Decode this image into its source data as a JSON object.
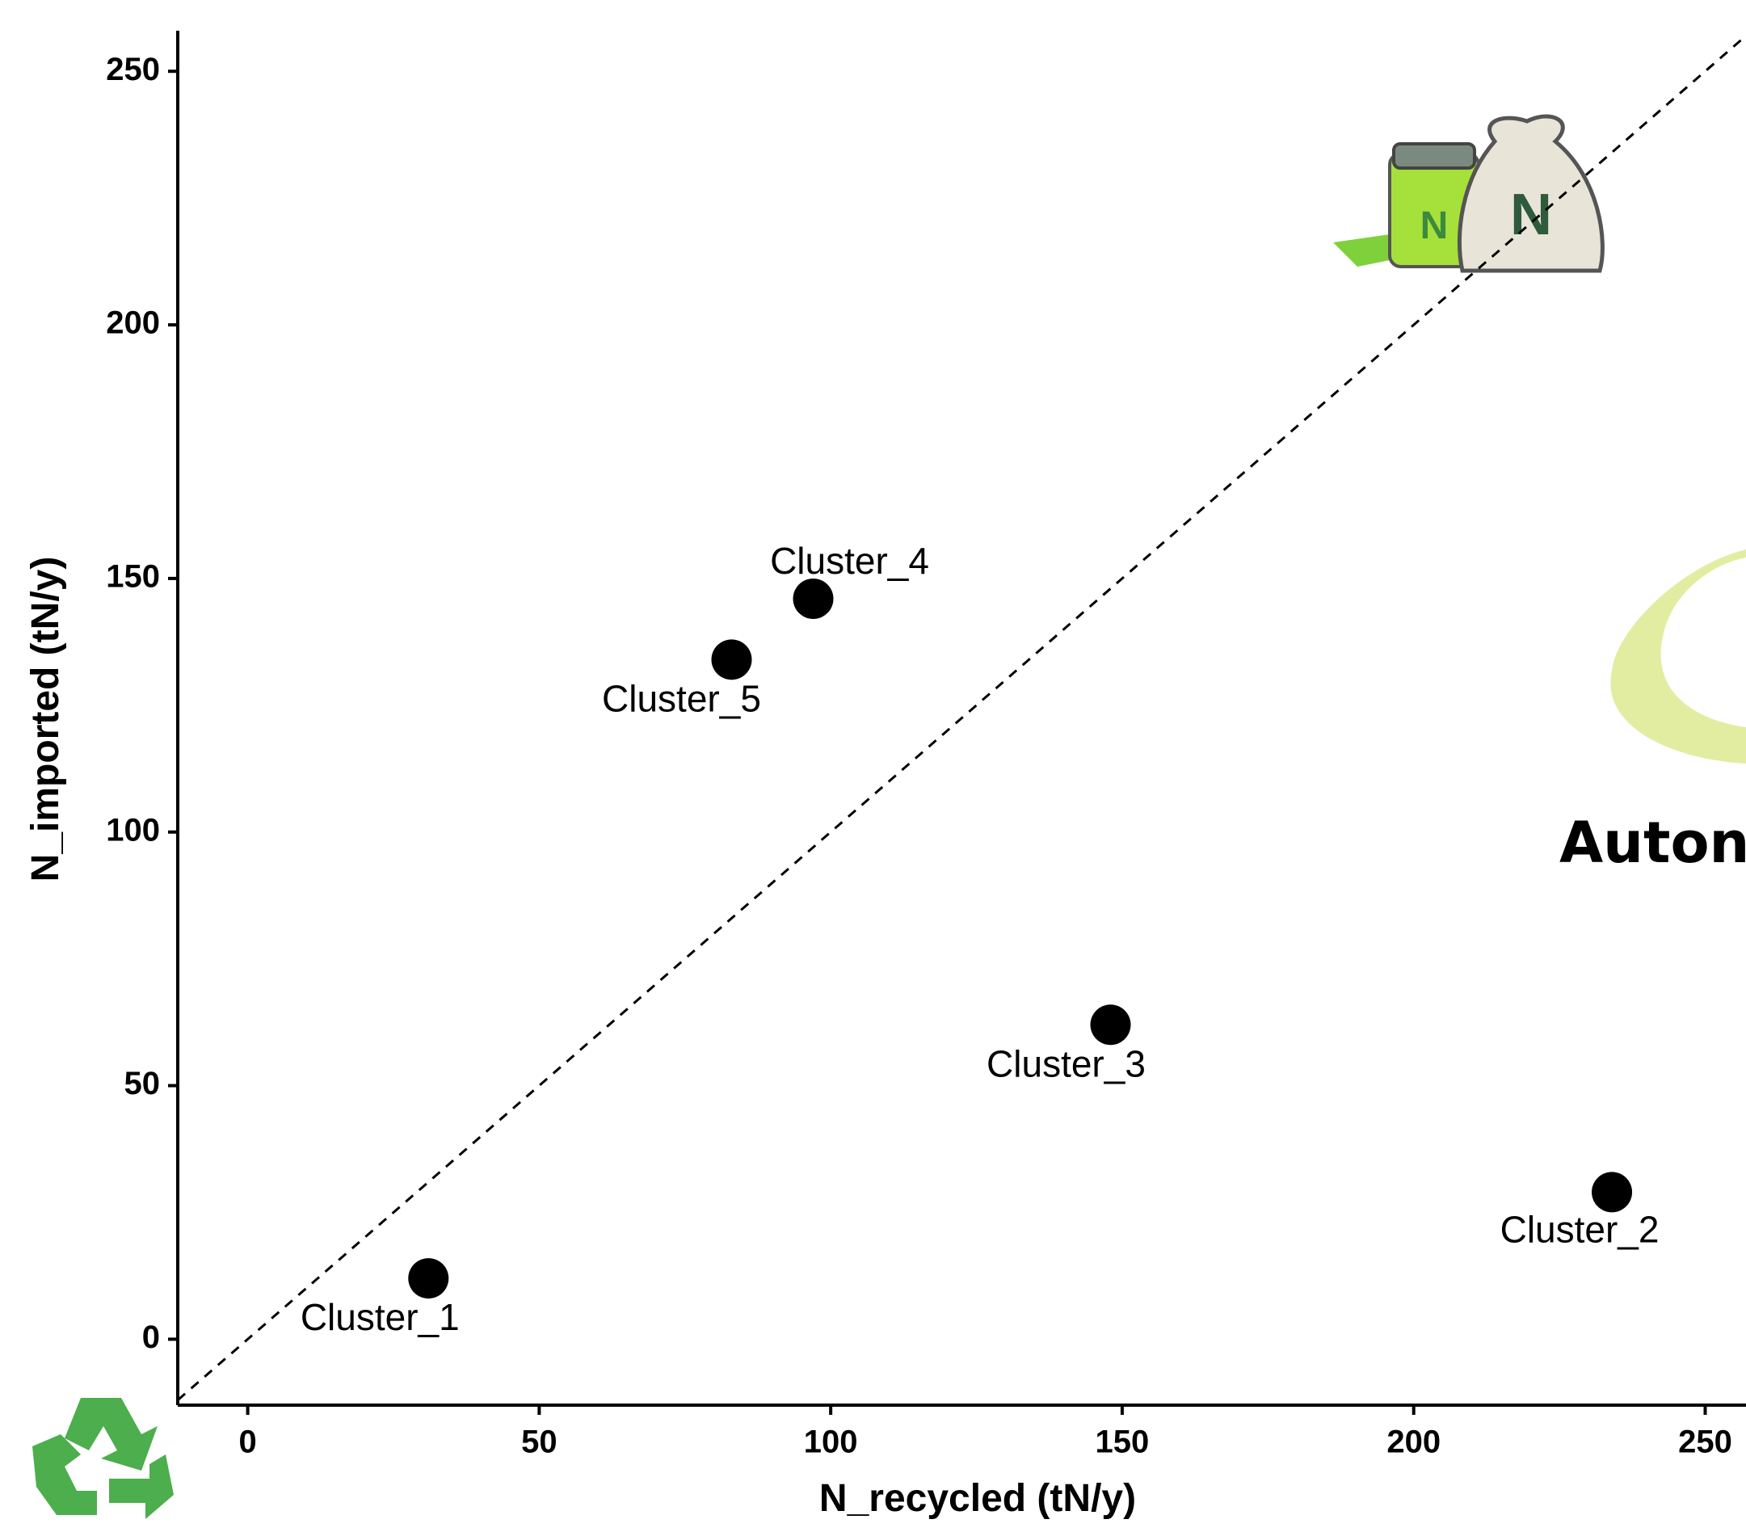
{
  "chart_data": {
    "type": "scatter",
    "x_label": "N_recycled (tN/y)",
    "y_label": "N_imported (tN/y)",
    "labels": [
      "Cluster_1",
      "Cluster_2",
      "Cluster_3",
      "Cluster_4",
      "Cluster_5"
    ],
    "x": [
      31,
      234,
      148,
      97,
      83
    ],
    "values": [
      12,
      29,
      62,
      146,
      134
    ],
    "color": "#000000",
    "xlim": [
      -12,
      257
    ],
    "ylim": [
      -13,
      258
    ],
    "xticks": [
      0,
      50,
      100,
      150,
      200,
      250
    ],
    "yticks": [
      0,
      50,
      100,
      150,
      200,
      250
    ],
    "diagonal": true,
    "annotation": "Auton"
  }
}
